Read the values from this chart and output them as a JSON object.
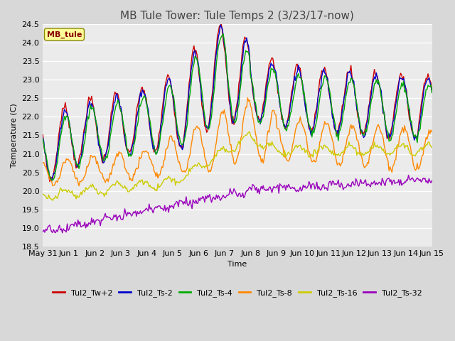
{
  "title": "MB Tule Tower: Tule Temps 2 (3/23/17-now)",
  "xlabel": "Time",
  "ylabel": "Temperature (C)",
  "ylim": [
    18.5,
    24.5
  ],
  "yticks": [
    18.5,
    19.0,
    19.5,
    20.0,
    20.5,
    21.0,
    21.5,
    22.0,
    22.5,
    23.0,
    23.5,
    24.0,
    24.5
  ],
  "xtick_labels": [
    "May 31",
    "Jun 1",
    "Jun 2",
    "Jun 3",
    "Jun 4",
    "Jun 5",
    "Jun 6",
    "Jun 7",
    "Jun 8",
    "Jun 9",
    "Jun 10",
    "Jun 11",
    "Jun 12",
    "Jun 13",
    "Jun 14",
    "Jun 15"
  ],
  "line_colors": [
    "#cc0000",
    "#0000cc",
    "#00aa00",
    "#ff8800",
    "#cccc00",
    "#9900bb"
  ],
  "line_labels": [
    "Tul2_Tw+2",
    "Tul2_Ts-2",
    "Tul2_Ts-4",
    "Tul2_Ts-8",
    "Tul2_Ts-16",
    "Tul2_Ts-32"
  ],
  "legend_title": "MB_tule",
  "bg_color": "#d8d8d8",
  "plot_bg_color": "#ebebeb",
  "grid_color": "#ffffff",
  "title_fontsize": 11,
  "axis_fontsize": 8,
  "tick_fontsize": 8,
  "legend_fontsize": 8
}
